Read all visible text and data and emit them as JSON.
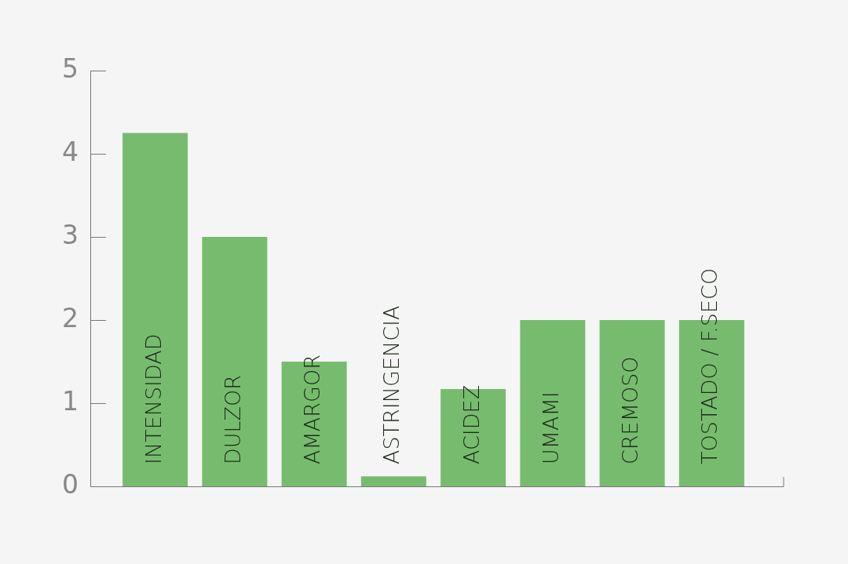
{
  "chart_data": {
    "type": "bar",
    "categories": [
      "INTENSIDAD",
      "DULZOR",
      "AMARGOR",
      "ASTRINGENCIA",
      "ACIDEZ",
      "UMAMI",
      "CREMOSO",
      "TOSTADO / F.SECO"
    ],
    "values": [
      4.25,
      3,
      1.5,
      0.12,
      1.17,
      2,
      2,
      2
    ],
    "color": "#77bc6e",
    "ylim": [
      0,
      5
    ],
    "yticks": [
      0,
      1,
      2,
      3,
      4,
      5
    ],
    "legend": false,
    "grid": false
  }
}
